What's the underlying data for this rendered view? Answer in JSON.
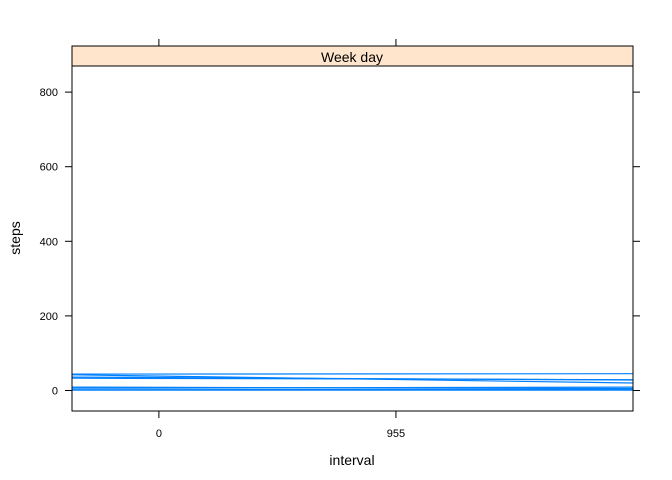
{
  "chart_data": {
    "type": "line",
    "panel_title": "Week day",
    "xlabel": "interval",
    "ylabel": "steps",
    "x_ticks": [
      0,
      955
    ],
    "y_ticks": [
      0,
      200,
      400,
      600,
      800
    ],
    "xlim": [
      -350,
      1910
    ],
    "ylim": [
      -55,
      870
    ],
    "colors": {
      "line": "#0080ff",
      "strip_fill": "#ffe5cc",
      "axis": "#000000"
    },
    "series": [
      {
        "x": [
          -350,
          1910
        ],
        "y": [
          44,
          45
        ]
      },
      {
        "x": [
          -350,
          1910
        ],
        "y": [
          42,
          20
        ]
      },
      {
        "x": [
          -350,
          1910
        ],
        "y": [
          36,
          28
        ]
      },
      {
        "x": [
          -350,
          1910
        ],
        "y": [
          33,
          29
        ]
      },
      {
        "x": [
          -350,
          1910
        ],
        "y": [
          9,
          5
        ]
      },
      {
        "x": [
          -350,
          1910
        ],
        "y": [
          6,
          9
        ]
      },
      {
        "x": [
          -350,
          1910
        ],
        "y": [
          2,
          3
        ]
      },
      {
        "x": [
          -350,
          1910
        ],
        "y": [
          1,
          1
        ]
      }
    ]
  }
}
